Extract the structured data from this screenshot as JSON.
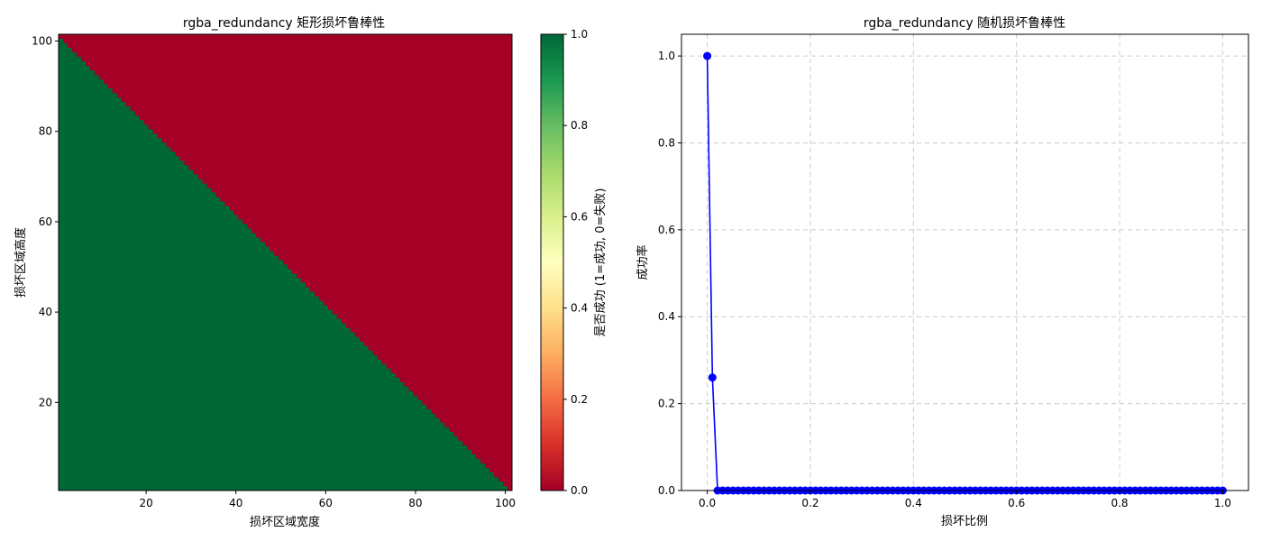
{
  "chart_data": [
    {
      "type": "heatmap",
      "title": "rgba_redundancy 矩形损坏鲁棒性",
      "xlabel": "损坏区域宽度",
      "ylabel": "损坏区域高度",
      "x_range": [
        1,
        101
      ],
      "y_range": [
        1,
        101
      ],
      "xticks": [
        20,
        40,
        60,
        80,
        100
      ],
      "yticks": [
        20,
        40,
        60,
        80,
        100
      ],
      "rule": "success (1) when width + height <= 101, otherwise failure (0)",
      "success_value": 1,
      "failure_value": 0,
      "colormap": "RdYlGn",
      "colors": {
        "success": "#006837",
        "failure": "#a50026"
      },
      "colorbar": {
        "label": "是否成功 (1=成功, 0=失败)",
        "range": [
          0.0,
          1.0
        ],
        "ticks": [
          "0.0",
          "0.2",
          "0.4",
          "0.6",
          "0.8",
          "1.0"
        ],
        "stops": [
          "#a50026",
          "#d73027",
          "#f46d43",
          "#fdae61",
          "#fee08b",
          "#ffffbf",
          "#d9ef8b",
          "#a6d96a",
          "#66bd63",
          "#1a9850",
          "#006837"
        ]
      }
    },
    {
      "type": "line",
      "title": "rgba_redundancy 随机损坏鲁棒性",
      "xlabel": "损坏比例",
      "ylabel": "成功率",
      "xlim": [
        -0.05,
        1.05
      ],
      "ylim": [
        0.0,
        1.05
      ],
      "xticks": [
        "0.0",
        "0.2",
        "0.4",
        "0.6",
        "0.8",
        "1.0"
      ],
      "yticks": [
        "0.0",
        "0.2",
        "0.4",
        "0.6",
        "0.8",
        "1.0"
      ],
      "grid": true,
      "color": "#0000ff",
      "x": [
        0.0,
        0.01,
        0.02,
        0.03,
        0.04,
        0.05,
        0.06,
        0.07,
        0.08,
        0.09,
        0.1,
        0.11,
        0.12,
        0.13,
        0.14,
        0.15,
        0.16,
        0.17,
        0.18,
        0.19,
        0.2,
        0.21,
        0.22,
        0.23,
        0.24,
        0.25,
        0.26,
        0.27,
        0.28,
        0.29,
        0.3,
        0.31,
        0.32,
        0.33,
        0.34,
        0.35,
        0.36,
        0.37,
        0.38,
        0.39,
        0.4,
        0.41,
        0.42,
        0.43,
        0.44,
        0.45,
        0.46,
        0.47,
        0.48,
        0.49,
        0.5,
        0.51,
        0.52,
        0.53,
        0.54,
        0.55,
        0.56,
        0.57,
        0.58,
        0.59,
        0.6,
        0.61,
        0.62,
        0.63,
        0.64,
        0.65,
        0.66,
        0.67,
        0.68,
        0.69,
        0.7,
        0.71,
        0.72,
        0.73,
        0.74,
        0.75,
        0.76,
        0.77,
        0.78,
        0.79,
        0.8,
        0.81,
        0.82,
        0.83,
        0.84,
        0.85,
        0.86,
        0.87,
        0.88,
        0.89,
        0.9,
        0.91,
        0.92,
        0.93,
        0.94,
        0.95,
        0.96,
        0.97,
        0.98,
        0.99,
        1.0
      ],
      "y": [
        1.0,
        0.26,
        0.0,
        0.0,
        0.0,
        0.0,
        0.0,
        0.0,
        0.0,
        0.0,
        0.0,
        0.0,
        0.0,
        0.0,
        0.0,
        0.0,
        0.0,
        0.0,
        0.0,
        0.0,
        0.0,
        0.0,
        0.0,
        0.0,
        0.0,
        0.0,
        0.0,
        0.0,
        0.0,
        0.0,
        0.0,
        0.0,
        0.0,
        0.0,
        0.0,
        0.0,
        0.0,
        0.0,
        0.0,
        0.0,
        0.0,
        0.0,
        0.0,
        0.0,
        0.0,
        0.0,
        0.0,
        0.0,
        0.0,
        0.0,
        0.0,
        0.0,
        0.0,
        0.0,
        0.0,
        0.0,
        0.0,
        0.0,
        0.0,
        0.0,
        0.0,
        0.0,
        0.0,
        0.0,
        0.0,
        0.0,
        0.0,
        0.0,
        0.0,
        0.0,
        0.0,
        0.0,
        0.0,
        0.0,
        0.0,
        0.0,
        0.0,
        0.0,
        0.0,
        0.0,
        0.0,
        0.0,
        0.0,
        0.0,
        0.0,
        0.0,
        0.0,
        0.0,
        0.0,
        0.0,
        0.0,
        0.0,
        0.0,
        0.0,
        0.0,
        0.0,
        0.0,
        0.0,
        0.0,
        0.0,
        0.0
      ]
    }
  ]
}
